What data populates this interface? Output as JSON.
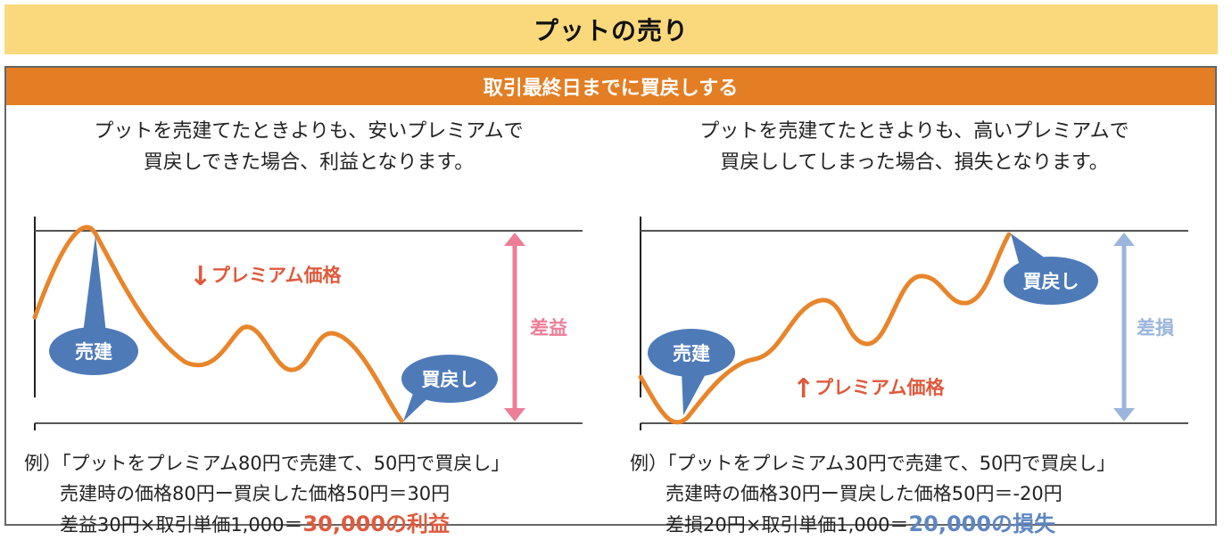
{
  "title": "プットの売り",
  "subtitle": "取引最終日までに買戻しする",
  "colors": {
    "title_bg": "#fad97c",
    "subtitle_bg": "#e37e25",
    "line": "#e8852b",
    "callout": "#4e7ab8",
    "profit": "#e0593b",
    "profit_arrow": "#ec7e98",
    "loss": "#5e86c2",
    "loss_arrow": "#9bb5dc"
  },
  "left": {
    "desc_line1": "プットを売建てたときよりも、安いプレミアムで",
    "desc_line2": "買戻しできた場合、利益となります。",
    "callout_sell": "売建",
    "callout_buyback": "買戻し",
    "premium_label": "プレミアム価格",
    "premium_arrow": "↓",
    "range_label": "差益",
    "example_line1": "例）「プットをプレミアム80円で売建て、50円で買戻し」",
    "example_line2": "売建時の価格80円ー買戻した価格50円＝30円",
    "example_line3_prefix": "差益30円×取引単価1,000＝",
    "example_line3_result": "30,000の利益"
  },
  "right": {
    "desc_line1": "プットを売建てたときよりも、高いプレミアムで",
    "desc_line2": "買戻ししてしまった場合、損失となります。",
    "callout_sell": "売建",
    "callout_buyback": "買戻し",
    "premium_label": "プレミアム価格",
    "premium_arrow": "↑",
    "range_label": "差損",
    "example_line1": "例）「プットをプレミアム30円で売建て、50円で買戻し」",
    "example_line2": "売建時の価格30円ー買戻した価格50円＝-20円",
    "example_line3_prefix": "差損20円×取引単価1,000＝",
    "example_line3_result": "20,000の損失"
  }
}
